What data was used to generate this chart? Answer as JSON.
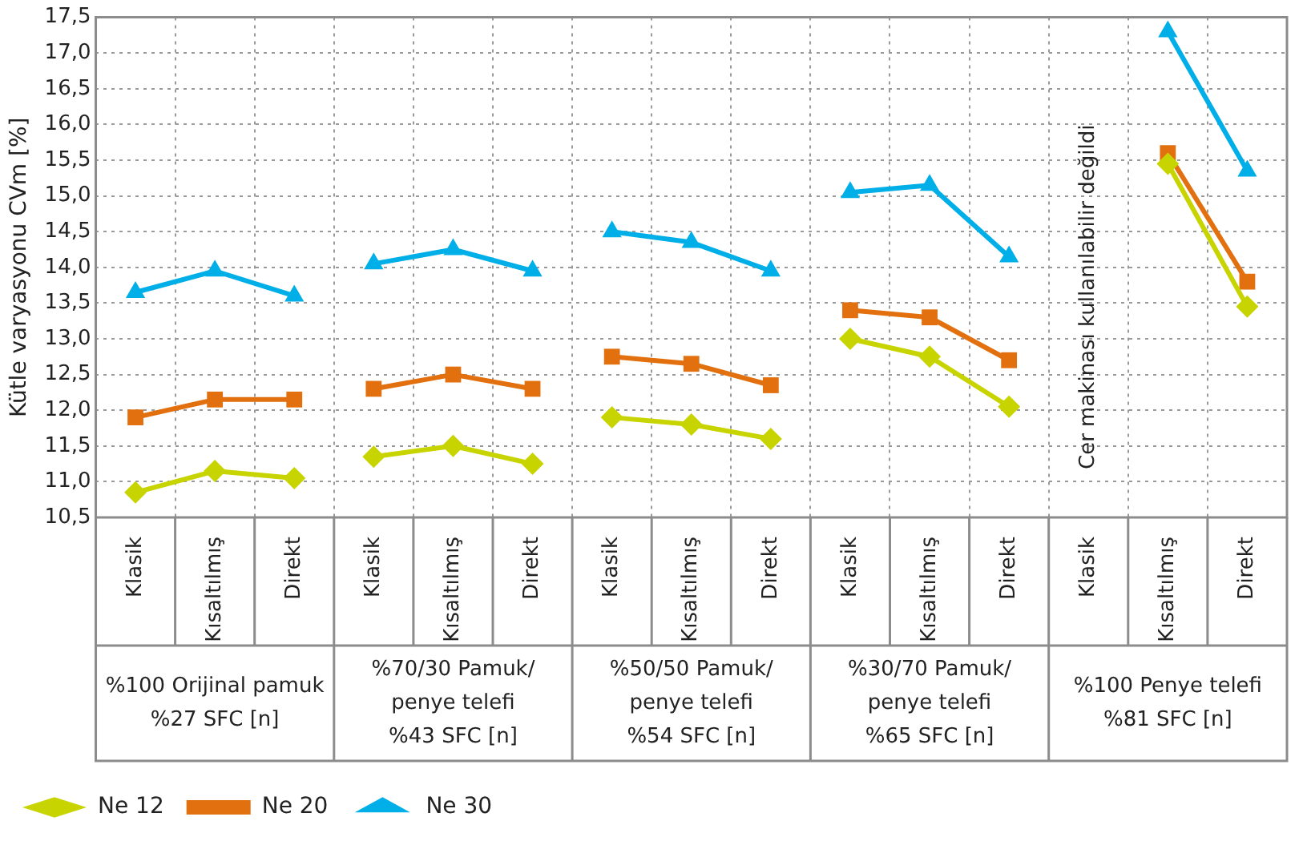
{
  "chart_data": {
    "type": "line",
    "ylabel": "Kütle varyasyonu CVm [%]",
    "categories": [
      "Klasik",
      "Kısaltılmış",
      "Direkt",
      "Klasik",
      "Kısaltılmış",
      "Direkt",
      "Klasik",
      "Kısaltılmış",
      "Direkt",
      "Klasik",
      "Kısaltılmış",
      "Direkt",
      "Klasik",
      "Kısaltılmış",
      "Direkt"
    ],
    "series": [
      {
        "name": "Ne 12",
        "color": "#c8d400",
        "marker": "diamond",
        "values": [
          10.85,
          11.15,
          11.05,
          11.35,
          11.5,
          11.25,
          11.9,
          11.8,
          11.6,
          13.0,
          12.75,
          12.05,
          null,
          15.45,
          13.45
        ]
      },
      {
        "name": "Ne 20",
        "color": "#e2700f",
        "marker": "square",
        "values": [
          11.9,
          12.15,
          12.15,
          12.3,
          12.5,
          12.3,
          12.75,
          12.65,
          12.35,
          13.4,
          13.3,
          12.7,
          null,
          15.6,
          13.8
        ]
      },
      {
        "name": "Ne 30",
        "color": "#00aee8",
        "marker": "triangle",
        "values": [
          13.65,
          13.95,
          13.6,
          14.05,
          14.25,
          13.95,
          14.5,
          14.35,
          13.95,
          15.05,
          15.15,
          14.15,
          null,
          17.3,
          15.35
        ]
      }
    ],
    "ylim": [
      10.5,
      17.5
    ],
    "yticks": [
      {
        "value": 10.5,
        "label": "10,5"
      },
      {
        "value": 11,
        "label": "11,0"
      },
      {
        "value": 11.5,
        "label": "11,5"
      },
      {
        "value": 12,
        "label": "12,0"
      },
      {
        "value": 12.5,
        "label": "12,5"
      },
      {
        "value": 13,
        "label": "13,0"
      },
      {
        "value": 13.5,
        "label": "13,5"
      },
      {
        "value": 14,
        "label": "14,0"
      },
      {
        "value": 14.5,
        "label": "14,5"
      },
      {
        "value": 15,
        "label": "15,0"
      },
      {
        "value": 15.5,
        "label": "15,5"
      },
      {
        "value": 16,
        "label": "16,0"
      },
      {
        "value": 16.5,
        "label": "16,5"
      },
      {
        "value": 17,
        "label": "17,0"
      },
      {
        "value": 17.5,
        "label": "17,5"
      }
    ],
    "grid": true,
    "legend": "bottom",
    "line_style": "solid",
    "annotations": [
      "%100 Orijinal pamuk\n%27 SFC [n]",
      "%70/30 Pamuk/\npenye telefi\n%43 SFC [n]",
      "%50/50 Pamuk/\npenye telefi\n%54 SFC [n]",
      "%30/70 Pamuk/\npenye telefi\n%65 SFC [n]",
      "%100 Penye telefi\n%81 SFC [n]",
      "Cer makinası kullanılabilir değildi"
    ]
  }
}
